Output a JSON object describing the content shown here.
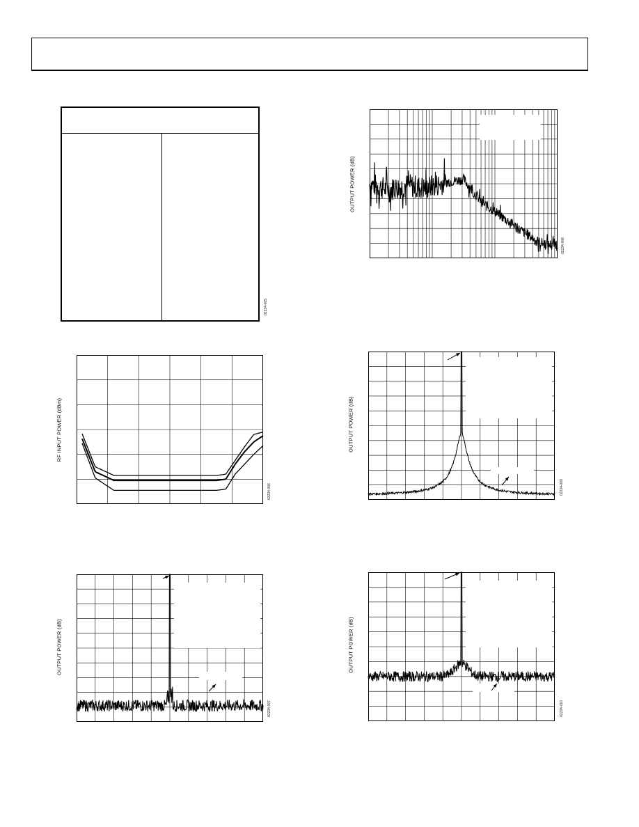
{
  "figure_codes": [
    "02234-005",
    "02234-006",
    "02234-007",
    "02234-008",
    "02234-009",
    "02234-010"
  ],
  "y_labels": {
    "rf_input_power": "RF INPUT POWER (dBm)",
    "output_power": "OUTPUT POWER (dB)"
  },
  "colors": {
    "ink": "#000000",
    "grid": "#000000",
    "background": "#ffffff"
  },
  "chart_data": [
    {
      "type": "line",
      "panel": "rf-input-power",
      "ylabel": "RF INPUT POWER (dBm)",
      "grid": true,
      "x": [
        0.0,
        0.1,
        0.2,
        0.3,
        0.4,
        0.5,
        0.6,
        0.7,
        0.75,
        0.8,
        0.85,
        0.9,
        0.95,
        1.0
      ],
      "series": [
        {
          "values": [
            3.4,
            1.5,
            1.15,
            1.15,
            1.15,
            1.15,
            1.15,
            1.15,
            1.15,
            1.2,
            1.75,
            2.3,
            2.8,
            2.9
          ]
        },
        {
          "values": [
            3.2,
            1.3,
            0.95,
            0.95,
            0.95,
            0.95,
            0.95,
            0.95,
            0.95,
            1.0,
            1.6,
            2.1,
            2.5,
            2.75
          ]
        },
        {
          "values": [
            3.05,
            1.05,
            0.55,
            0.55,
            0.55,
            0.55,
            0.55,
            0.55,
            0.55,
            0.6,
            1.2,
            1.6,
            2.0,
            2.35
          ]
        }
      ],
      "ylim": [
        0,
        6
      ],
      "xlim": [
        0,
        1
      ]
    },
    {
      "type": "line",
      "panel": "spectrum-log",
      "ylabel": "OUTPUT POWER (dB)",
      "grid": true,
      "scale": "log-x",
      "x": [
        0.0,
        0.1,
        0.2,
        0.3,
        0.4,
        0.5,
        0.55,
        0.6,
        0.65,
        0.7,
        0.75,
        0.8,
        0.85,
        0.9,
        0.95,
        1.0
      ],
      "values": [
        5.0,
        4.6,
        4.9,
        4.7,
        5.1,
        5.3,
        4.5,
        3.7,
        3.3,
        2.8,
        2.4,
        1.9,
        1.5,
        1.1,
        0.9,
        1.0
      ],
      "ylim": [
        0,
        10
      ],
      "xlim": [
        0,
        1
      ]
    },
    {
      "type": "line",
      "panel": "spectrum-peak-a",
      "ylabel": "OUTPUT POWER (dB)",
      "grid": true,
      "peak_x": 0.5,
      "noise_floor": 1.1,
      "peak_level": 10,
      "ylim": [
        0,
        10
      ],
      "xlim": [
        0,
        1
      ]
    },
    {
      "type": "line",
      "panel": "spectrum-peak-b",
      "ylabel": "OUTPUT POWER (dB)",
      "grid": true,
      "peak_x": 0.5,
      "noise_floor": 0.3,
      "peak_level": 10,
      "shoulder_level": 4.3,
      "ylim": [
        0,
        10
      ],
      "xlim": [
        0,
        1
      ]
    },
    {
      "type": "line",
      "panel": "spectrum-peak-c",
      "ylabel": "OUTPUT POWER (dB)",
      "grid": true,
      "peak_x": 0.5,
      "noise_floor": 3.0,
      "peak_level": 10,
      "ylim": [
        0,
        10
      ],
      "xlim": [
        0,
        1
      ]
    }
  ]
}
